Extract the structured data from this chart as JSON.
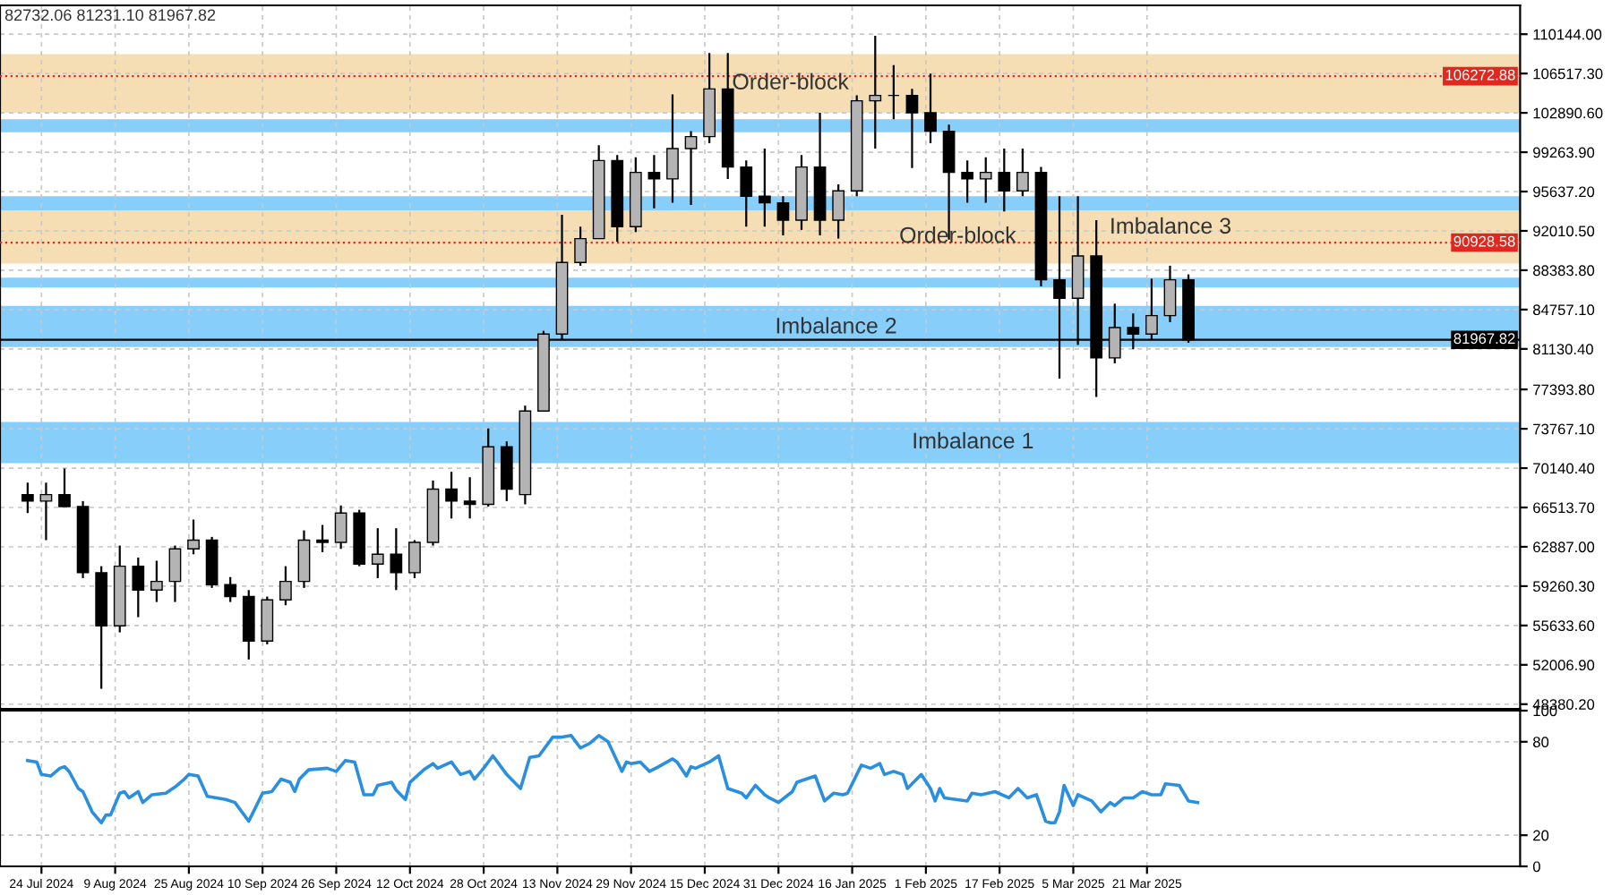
{
  "chart_data": [
    {
      "type": "candlestick",
      "x": [
        "2024-07-21",
        "2024-07-25",
        "2024-07-29",
        "2024-08-02",
        "2024-08-06",
        "2024-08-10",
        "2024-08-14",
        "2024-08-18",
        "2024-08-22",
        "2024-08-26",
        "2024-08-30",
        "2024-09-03",
        "2024-09-07",
        "2024-09-11",
        "2024-09-15",
        "2024-09-19",
        "2024-09-23",
        "2024-09-27",
        "2024-10-01",
        "2024-10-05",
        "2024-10-09",
        "2024-10-13",
        "2024-10-17",
        "2024-10-21",
        "2024-10-25",
        "2024-10-29",
        "2024-11-02",
        "2024-11-06",
        "2024-11-10",
        "2024-11-14",
        "2024-11-18",
        "2024-11-22",
        "2024-11-26",
        "2024-11-30",
        "2024-12-04",
        "2024-12-08",
        "2024-12-12",
        "2024-12-16",
        "2024-12-20",
        "2024-12-24",
        "2024-12-28",
        "2025-01-01",
        "2025-01-05",
        "2025-01-09",
        "2025-01-13",
        "2025-01-17",
        "2025-01-21",
        "2025-01-25",
        "2025-01-29",
        "2025-02-02",
        "2025-02-06",
        "2025-02-10",
        "2025-02-14",
        "2025-02-18",
        "2025-02-22",
        "2025-02-26",
        "2025-03-02",
        "2025-03-06",
        "2025-03-10",
        "2025-03-14",
        "2025-03-18",
        "2025-03-22",
        "2025-03-26",
        "2025-03-30"
      ],
      "ohlc": [
        [
          67700,
          68800,
          66000,
          67100
        ],
        [
          67100,
          68800,
          63500,
          67700
        ],
        [
          67700,
          70100,
          66600,
          66600
        ],
        [
          66600,
          67100,
          60000,
          60500
        ],
        [
          60500,
          61100,
          49800,
          55600
        ],
        [
          55600,
          63000,
          55000,
          61100
        ],
        [
          61100,
          61900,
          56400,
          58900
        ],
        [
          58900,
          61600,
          57800,
          59700
        ],
        [
          59700,
          63000,
          57800,
          62700
        ],
        [
          62700,
          65400,
          62200,
          63500
        ],
        [
          63500,
          63800,
          59100,
          59400
        ],
        [
          59400,
          60100,
          57800,
          58300
        ],
        [
          58300,
          58900,
          52500,
          54200
        ],
        [
          54200,
          58300,
          53900,
          58000
        ],
        [
          58000,
          61100,
          57500,
          59700
        ],
        [
          59700,
          64400,
          59100,
          63500
        ],
        [
          63500,
          64900,
          62400,
          63300
        ],
        [
          63300,
          66700,
          62700,
          66000
        ],
        [
          66000,
          66300,
          61100,
          61300
        ],
        [
          61300,
          64600,
          60000,
          62200
        ],
        [
          62200,
          64600,
          58900,
          60500
        ],
        [
          60500,
          63500,
          60000,
          63300
        ],
        [
          63300,
          69000,
          63000,
          68200
        ],
        [
          68200,
          69800,
          65500,
          67100
        ],
        [
          67100,
          69300,
          65500,
          66800
        ],
        [
          66800,
          73800,
          66600,
          72100
        ],
        [
          72100,
          72600,
          67100,
          68200
        ],
        [
          67700,
          75900,
          66800,
          75400
        ],
        [
          75400,
          82800,
          75400,
          82500
        ],
        [
          82500,
          93500,
          82000,
          89100
        ],
        [
          89100,
          92400,
          88800,
          91300
        ],
        [
          91300,
          99900,
          91300,
          98500
        ],
        [
          98500,
          99000,
          91000,
          92400
        ],
        [
          92400,
          98800,
          91900,
          97400
        ],
        [
          97400,
          99000,
          94100,
          96800
        ],
        [
          96800,
          104600,
          94600,
          99600
        ],
        [
          99600,
          101200,
          94400,
          100700
        ],
        [
          100700,
          108400,
          100100,
          105100
        ],
        [
          105100,
          108400,
          96800,
          97900
        ],
        [
          97900,
          98500,
          92400,
          95200
        ],
        [
          95200,
          99600,
          92400,
          94600
        ],
        [
          94600,
          95200,
          91600,
          93000
        ],
        [
          93000,
          99000,
          92100,
          97900
        ],
        [
          97900,
          102900,
          91600,
          93000
        ],
        [
          93000,
          96300,
          91300,
          95700
        ],
        [
          95700,
          104500,
          95200,
          104000
        ],
        [
          104000,
          110000,
          99600,
          104500
        ],
        [
          104500,
          107300,
          102300,
          104500
        ],
        [
          104500,
          105100,
          97800,
          102900
        ],
        [
          102900,
          106500,
          100100,
          101200
        ],
        [
          101200,
          101800,
          91200,
          97400
        ],
        [
          97400,
          98500,
          94600,
          96800
        ],
        [
          96800,
          98800,
          94600,
          97400
        ],
        [
          97400,
          99600,
          93800,
          95700
        ],
        [
          95700,
          99600,
          95200,
          97400
        ],
        [
          97400,
          97900,
          86900,
          87500
        ],
        [
          87500,
          95200,
          78400,
          85800
        ],
        [
          85800,
          95200,
          81500,
          89700
        ],
        [
          89700,
          93000,
          76700,
          80300
        ],
        [
          80300,
          85300,
          79800,
          83100
        ],
        [
          83100,
          84400,
          81100,
          82500
        ],
        [
          82500,
          87600,
          82000,
          84200
        ],
        [
          84200,
          88800,
          83600,
          87500
        ],
        [
          87500,
          88000,
          81700,
          81967.82
        ]
      ],
      "xlim": [
        "2024-07-15",
        "2025-06-10"
      ],
      "ylim": [
        47950,
        112800
      ],
      "yticks": [
        {
          "value": 110144,
          "label": "110144.00"
        },
        {
          "value": 106517.3,
          "label": "106517.30"
        },
        {
          "value": 102890.6,
          "label": "102890.60"
        },
        {
          "value": 99263.9,
          "label": "99263.90"
        },
        {
          "value": 95637.2,
          "label": "95637.20"
        },
        {
          "value": 92010.5,
          "label": "92010.50"
        },
        {
          "value": 88383.8,
          "label": "88383.80"
        },
        {
          "value": 84757.1,
          "label": "84757.10"
        },
        {
          "value": 81130.4,
          "label": "81130.40"
        },
        {
          "value": 77393.8,
          "label": "77393.80"
        },
        {
          "value": 73767.1,
          "label": "73767.10"
        },
        {
          "value": 70140.4,
          "label": "70140.40"
        },
        {
          "value": 66513.7,
          "label": "66513.70"
        },
        {
          "value": 62887,
          "label": "62887.00"
        },
        {
          "value": 59260.3,
          "label": "59260.30"
        },
        {
          "value": 55633.6,
          "label": "55633.60"
        },
        {
          "value": 52006.9,
          "label": "52006.90"
        },
        {
          "value": 48380.2,
          "label": "48380.20"
        }
      ],
      "xticks": [
        {
          "value": "2024-07-24",
          "label": null
        },
        {
          "value": "2024-08-09",
          "label": null
        },
        {
          "value": "2024-08-25",
          "label": null
        },
        {
          "value": "2024-09-10",
          "label": null
        },
        {
          "value": "2024-09-26",
          "label": null
        },
        {
          "value": "2024-10-12",
          "label": null
        },
        {
          "value": "2024-10-28",
          "label": null
        },
        {
          "value": "2024-11-13",
          "label": null
        },
        {
          "value": "2024-11-29",
          "label": null
        },
        {
          "value": "2024-12-15",
          "label": null
        },
        {
          "value": "2024-12-31",
          "label": null
        },
        {
          "value": "2025-01-16",
          "label": null
        },
        {
          "value": "2025-02-01",
          "label": null
        },
        {
          "value": "2025-02-17",
          "label": null
        },
        {
          "value": "2025-03-05",
          "label": null
        },
        {
          "value": "2025-03-21",
          "label": null
        }
      ],
      "tick_labels": "y",
      "grid": true,
      "bands": [
        {
          "axis": "y",
          "from": 70600,
          "to": 74400,
          "label": "Imbalance 1",
          "color": "#87cefa"
        },
        {
          "axis": "y",
          "from": 81300,
          "to": 84900,
          "label": "Imbalance 2",
          "color": "#87cefa"
        },
        {
          "axis": "y",
          "from": 89400,
          "to": 95200,
          "label": "Imbalance 3",
          "color": "#87cefa"
        },
        {
          "axis": "y",
          "from": 102900,
          "to": 108300,
          "label": "Order-block",
          "color": "#f5deb3"
        },
        {
          "axis": "y",
          "from": 89000,
          "to": 93900,
          "label": "Order-block",
          "color": "#f5deb3"
        },
        {
          "axis": "y",
          "from": 86800,
          "to": 87700,
          "color": "#87cefa"
        },
        {
          "axis": "y",
          "from": 84100,
          "to": 85100,
          "color": "#87cefa"
        },
        {
          "axis": "y",
          "from": 101100,
          "to": 102300,
          "color": "#87cefa"
        }
      ],
      "ref_lines": [
        {
          "axis": "y",
          "value": 106272.88,
          "label": "106272.88",
          "color": "#e0281e",
          "line_style": "dotted"
        },
        {
          "axis": "y",
          "value": 90928.58,
          "label": "90928.58",
          "color": "#e0281e",
          "line_style": "dotted"
        },
        {
          "axis": "y",
          "value": 81967.82,
          "label": "81967.82",
          "color": "#000000",
          "line_style": "solid"
        }
      ],
      "annotations": [
        "82732.06 81231.10 81967.82"
      ]
    },
    {
      "type": "line",
      "x": [
        "2024-07-21",
        "2024-07-23",
        "2024-07-24",
        "2024-07-26",
        "2024-07-28",
        "2024-07-29",
        "2024-07-30",
        "2024-08-01",
        "2024-08-02",
        "2024-08-04",
        "2024-08-06",
        "2024-08-07",
        "2024-08-08",
        "2024-08-10",
        "2024-08-11",
        "2024-08-12",
        "2024-08-14",
        "2024-08-15",
        "2024-08-17",
        "2024-08-20",
        "2024-08-22",
        "2024-08-24",
        "2024-08-25",
        "2024-08-27",
        "2024-08-29",
        "2024-09-02",
        "2024-09-04",
        "2024-09-07",
        "2024-09-08",
        "2024-09-10",
        "2024-09-12",
        "2024-09-14",
        "2024-09-16",
        "2024-09-17",
        "2024-09-18",
        "2024-09-20",
        "2024-09-24",
        "2024-09-26",
        "2024-09-28",
        "2024-09-30",
        "2024-10-02",
        "2024-10-04",
        "2024-10-05",
        "2024-10-08",
        "2024-10-09",
        "2024-10-11",
        "2024-10-12",
        "2024-10-15",
        "2024-10-17",
        "2024-10-18",
        "2024-10-21",
        "2024-10-23",
        "2024-10-25",
        "2024-10-26",
        "2024-10-28",
        "2024-10-30",
        "2024-10-31",
        "2024-11-02",
        "2024-11-03",
        "2024-11-05",
        "2024-11-07",
        "2024-11-09",
        "2024-11-12",
        "2024-11-14",
        "2024-11-16",
        "2024-11-18",
        "2024-11-20",
        "2024-11-22",
        "2024-11-24",
        "2024-11-27",
        "2024-11-28",
        "2024-11-29",
        "2024-12-01",
        "2024-12-03",
        "2024-12-05",
        "2024-12-08",
        "2024-12-09",
        "2024-12-11",
        "2024-12-12",
        "2024-12-13",
        "2024-12-16",
        "2024-12-18",
        "2024-12-20",
        "2024-12-23",
        "2024-12-24",
        "2024-12-26",
        "2024-12-28",
        "2024-12-29",
        "2024-12-31",
        "2025-01-03",
        "2025-01-04",
        "2025-01-06",
        "2025-01-08",
        "2025-01-10",
        "2025-01-12",
        "2025-01-14",
        "2025-01-15",
        "2025-01-18",
        "2025-01-20",
        "2025-01-22",
        "2025-01-23",
        "2025-01-25",
        "2025-01-27",
        "2025-01-28",
        "2025-01-31",
        "2025-02-02",
        "2025-02-03",
        "2025-02-04",
        "2025-02-05",
        "2025-02-10",
        "2025-02-11",
        "2025-02-13",
        "2025-02-16",
        "2025-02-19",
        "2025-02-21",
        "2025-02-23",
        "2025-02-25",
        "2025-02-27",
        "2025-02-28",
        "2025-03-01",
        "2025-03-02",
        "2025-03-03",
        "2025-03-05",
        "2025-03-06",
        "2025-03-09",
        "2025-03-11",
        "2025-03-13",
        "2025-03-14",
        "2025-03-16",
        "2025-03-18",
        "2025-03-20",
        "2025-03-22",
        "2025-03-24",
        "2025-03-25",
        "2025-03-28",
        "2025-03-30",
        "2025-04-01"
      ],
      "series": [
        {
          "color": "#2a8fde",
          "values": [
            68,
            67,
            59,
            58,
            63,
            64,
            61,
            50,
            48,
            35,
            28,
            33,
            33,
            47,
            48,
            44,
            48,
            41,
            46,
            47,
            51,
            56,
            59,
            58,
            45,
            43,
            41,
            29,
            35,
            47,
            48,
            56,
            54,
            48,
            56,
            62,
            63,
            61,
            68,
            67,
            46,
            46,
            52,
            54,
            49,
            43,
            54,
            62,
            66,
            63,
            67,
            59,
            61,
            56,
            63,
            71,
            67,
            59,
            56,
            50,
            70,
            71,
            83,
            83,
            84,
            76,
            79,
            84,
            80,
            61,
            67,
            66,
            67,
            61,
            64,
            69,
            67,
            58,
            64,
            63,
            67,
            71,
            50,
            47,
            44,
            52,
            46,
            44,
            41,
            48,
            54,
            56,
            58,
            42,
            47,
            46,
            47,
            65,
            63,
            66,
            59,
            61,
            59,
            50,
            59,
            50,
            42,
            50,
            44,
            42,
            47,
            46,
            48,
            44,
            50,
            44,
            46,
            29,
            28,
            28,
            35,
            52,
            39,
            46,
            42,
            35,
            41,
            39,
            44,
            44,
            48,
            46,
            46,
            53,
            52,
            42,
            41
          ]
        }
      ],
      "xlim": [
        "2024-07-15",
        "2025-06-10"
      ],
      "ylim": [
        0,
        100
      ],
      "yticks": [
        0,
        20,
        80,
        100
      ],
      "xticks": [
        {
          "value": "2024-07-24",
          "label": "24 Jul 2024"
        },
        {
          "value": "2024-08-09",
          "label": "9 Aug 2024"
        },
        {
          "value": "2024-08-25",
          "label": "25 Aug 2024"
        },
        {
          "value": "2024-09-10",
          "label": "10 Sep 2024"
        },
        {
          "value": "2024-09-26",
          "label": "26 Sep 2024"
        },
        {
          "value": "2024-10-12",
          "label": "12 Oct 2024"
        },
        {
          "value": "2024-10-28",
          "label": "28 Oct 2024"
        },
        {
          "value": "2024-11-13",
          "label": "13 Nov 2024"
        },
        {
          "value": "2024-11-29",
          "label": "29 Nov 2024"
        },
        {
          "value": "2024-12-15",
          "label": "15 Dec 2024"
        },
        {
          "value": "2024-12-31",
          "label": "31 Dec 2024"
        },
        {
          "value": "2025-01-16",
          "label": "16 Jan 2025"
        },
        {
          "value": "2025-02-01",
          "label": "1 Feb 2025"
        },
        {
          "value": "2025-02-17",
          "label": "17 Feb 2025"
        },
        {
          "value": "2025-03-05",
          "label": "5 Mar 2025"
        },
        {
          "value": "2025-03-21",
          "label": "21 Mar 2025"
        }
      ],
      "grid": true
    }
  ]
}
